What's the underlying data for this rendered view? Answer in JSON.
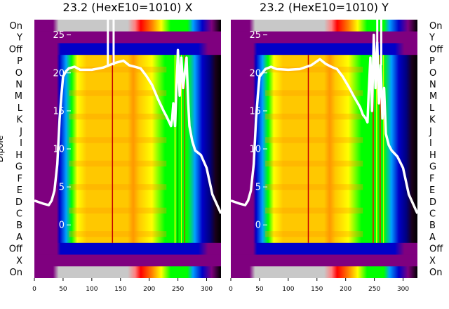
{
  "chart_data": [
    {
      "type": "heatmap",
      "title": "23.2 (HexE10=1010) X",
      "ylabel": "Dipole",
      "categories": [
        "On",
        "Y",
        "Off",
        "P",
        "O",
        "N",
        "M",
        "L",
        "K",
        "J",
        "I",
        "H",
        "G",
        "F",
        "E",
        "D",
        "C",
        "B",
        "A",
        "Off",
        "X",
        "On"
      ],
      "x_ticks": [
        "0",
        "50",
        "100",
        "150",
        "200",
        "250",
        "300"
      ],
      "xlim": [
        0,
        325
      ],
      "overlay_ticks": [
        "0",
        "5",
        "10",
        "15",
        "20",
        "25"
      ],
      "overlay_ylim": [
        -7,
        27
      ],
      "overlay_color": "#ffffff",
      "overlay_line": {
        "x": [
          0,
          15,
          25,
          30,
          35,
          40,
          44,
          47,
          50,
          55,
          60,
          70,
          80,
          100,
          120,
          140,
          155,
          165,
          175,
          185,
          195,
          205,
          215,
          225,
          230,
          235,
          238,
          240,
          242,
          245,
          248,
          250,
          253,
          256,
          259,
          262,
          265,
          268,
          270,
          275,
          280,
          290,
          300,
          310,
          325
        ],
        "y": [
          3.2,
          2.8,
          2.6,
          3.2,
          4.5,
          8,
          14,
          17,
          19.5,
          20.2,
          20.6,
          20.8,
          20.4,
          20.4,
          20.7,
          21.3,
          21.6,
          21,
          20.8,
          20.6,
          19.6,
          18.4,
          16.6,
          15,
          14.3,
          13.5,
          13,
          14,
          16,
          13,
          19,
          23,
          17,
          22,
          18,
          20,
          22,
          16,
          13,
          11,
          9.8,
          9.2,
          7.5,
          4,
          1.5
        ]
      },
      "spike_x": [
        128,
        138
      ],
      "colormap": [
        "#7f007f",
        "#0000c8",
        "#00a0ff",
        "#00ff00",
        "#ffff00",
        "#ffc800",
        "#ff0000",
        "#c8c8c8"
      ]
    },
    {
      "type": "heatmap",
      "title": "23.2 (HexE10=1010) Y",
      "categories": [
        "On",
        "Y",
        "Off",
        "P",
        "O",
        "N",
        "M",
        "L",
        "K",
        "J",
        "I",
        "H",
        "G",
        "F",
        "E",
        "D",
        "C",
        "B",
        "A",
        "Off",
        "X",
        "On"
      ],
      "x_ticks": [
        "0",
        "50",
        "100",
        "150",
        "200",
        "250",
        "300"
      ],
      "xlim": [
        0,
        325
      ],
      "overlay_ticks": [
        "0",
        "5",
        "10",
        "15",
        "20",
        "25"
      ],
      "overlay_ylim": [
        -7,
        27
      ],
      "overlay_color": "#ffffff",
      "overlay_line": {
        "x": [
          0,
          15,
          25,
          30,
          35,
          40,
          44,
          47,
          50,
          55,
          60,
          70,
          80,
          100,
          120,
          140,
          155,
          165,
          175,
          185,
          195,
          205,
          215,
          225,
          230,
          235,
          238,
          240,
          243,
          246,
          249,
          252,
          255,
          258,
          261,
          264,
          267,
          270,
          275,
          280,
          290,
          300,
          310,
          325
        ],
        "y": [
          3.2,
          2.8,
          2.6,
          3.2,
          4.5,
          8,
          14,
          17,
          19.5,
          20,
          20.5,
          20.8,
          20.5,
          20.4,
          20.5,
          21,
          21.8,
          21.2,
          20.8,
          20.5,
          19.5,
          18.2,
          16.8,
          15.5,
          14.5,
          14,
          13.5,
          17,
          22,
          15,
          25,
          18,
          24,
          16,
          21,
          14,
          18,
          12,
          10.5,
          9.8,
          9,
          7.5,
          4,
          1.5
        ]
      },
      "spike_x": [
        255,
        262
      ],
      "colormap": [
        "#7f007f",
        "#0000c8",
        "#00a0ff",
        "#00ff00",
        "#ffff00",
        "#ffc800",
        "#ff0000",
        "#c8c8c8"
      ]
    }
  ]
}
